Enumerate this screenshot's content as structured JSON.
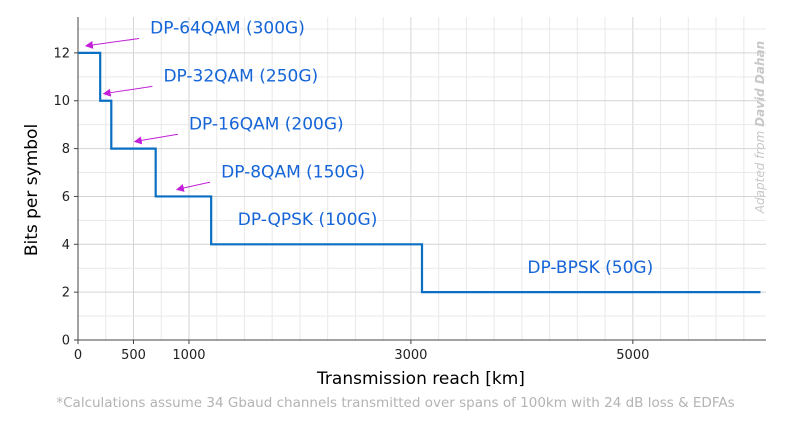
{
  "chart_data": {
    "type": "line",
    "xlabel": "Transmission reach [km]",
    "ylabel": "Bits per symbol",
    "xlim": [
      0,
      6200
    ],
    "ylim": [
      0,
      13.5
    ],
    "x_ticks": [
      0,
      500,
      1000,
      3000,
      5000
    ],
    "y_ticks": [
      0,
      2,
      4,
      6,
      8,
      10,
      12
    ],
    "grid": true,
    "line_color": "#0a6fc2",
    "label_color": "#1565d8",
    "arrow_color": "#c21fd8",
    "series": [
      {
        "x": [
          0,
          200,
          200,
          300,
          300,
          700,
          700,
          1200,
          1200,
          3100,
          3100,
          6150
        ],
        "y": [
          12,
          12,
          10,
          10,
          8,
          8,
          6,
          6,
          4,
          4,
          2,
          2
        ]
      }
    ],
    "annotations": [
      {
        "text": "DP-64QAM (300G)",
        "x": 650,
        "y": 12.8,
        "arrow_from": [
          550,
          12.6
        ],
        "arrow_to": [
          80,
          12.3
        ]
      },
      {
        "text": "DP-32QAM (250G)",
        "x": 770,
        "y": 10.8,
        "arrow_from": [
          670,
          10.6
        ],
        "arrow_to": [
          240,
          10.3
        ]
      },
      {
        "text": "DP-16QAM (200G)",
        "x": 1000,
        "y": 8.8,
        "arrow_from": [
          900,
          8.6
        ],
        "arrow_to": [
          520,
          8.3
        ]
      },
      {
        "text": "DP-8QAM (150G)",
        "x": 1290,
        "y": 6.8,
        "arrow_from": [
          1190,
          6.6
        ],
        "arrow_to": [
          900,
          6.3
        ]
      },
      {
        "text": "DP-QPSK (100G)",
        "x": 1440,
        "y": 4.8,
        "arrow_from": null,
        "arrow_to": null
      },
      {
        "text": "DP-BPSK (50G)",
        "x": 4050,
        "y": 2.8,
        "arrow_from": null,
        "arrow_to": null
      }
    ]
  },
  "footnote": "*Calculations assume 34 Gbaud channels transmitted over spans of 100km  with 24 dB loss & EDFAs",
  "credit": {
    "prefix": "Adapted from ",
    "author": "David Dahan"
  }
}
